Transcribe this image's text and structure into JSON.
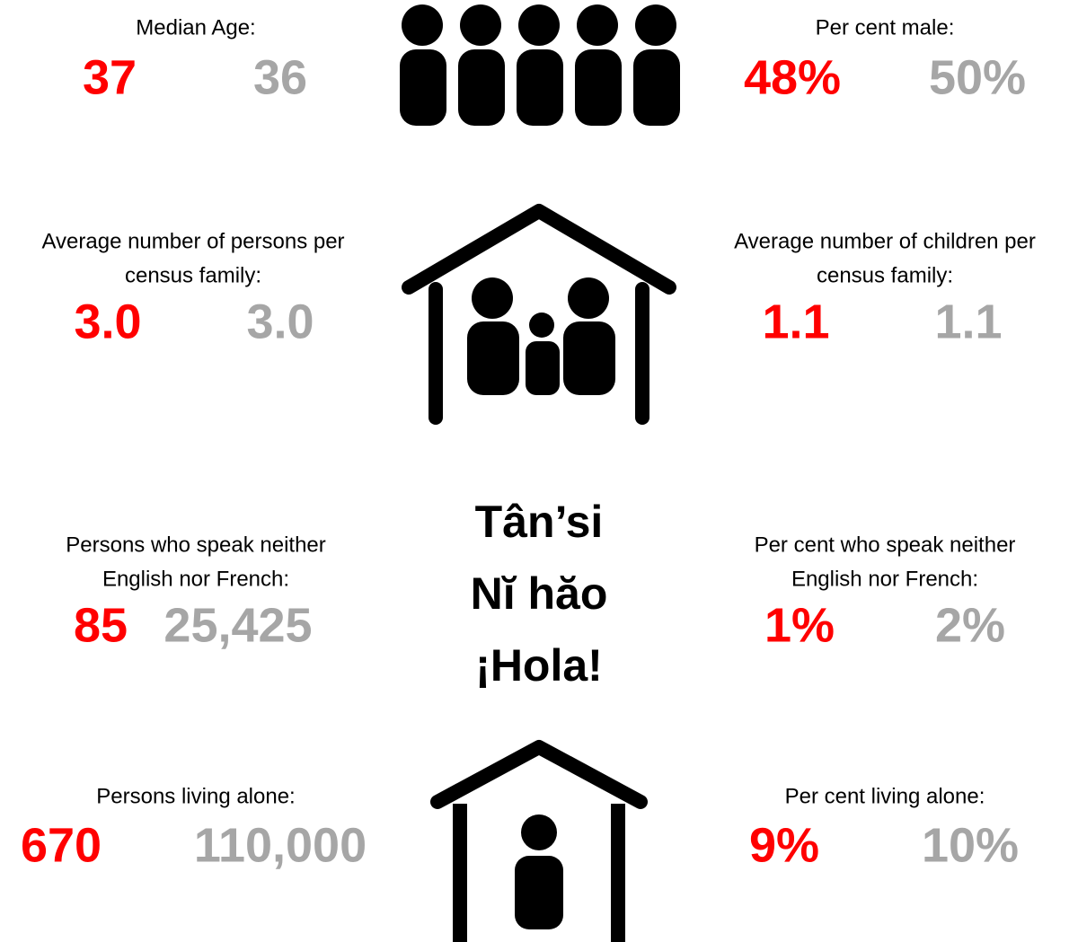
{
  "stats": [
    {
      "label": [
        "Median Age:"
      ],
      "local": "37",
      "comparison": "36"
    },
    {
      "label": [
        "Per cent male:"
      ],
      "local": "48%",
      "comparison": "50%"
    },
    {
      "label": [
        "Average number of persons per",
        "census family:"
      ],
      "local": "3.0",
      "comparison": "3.0"
    },
    {
      "label": [
        "Average number of children per",
        "census family:"
      ],
      "local": "1.1",
      "comparison": "1.1"
    },
    {
      "label": [
        "Persons who speak neither",
        "English nor French:"
      ],
      "local": "85",
      "comparison": "25,425"
    },
    {
      "label": [
        "Per cent who speak neither",
        "English nor French:"
      ],
      "local": "1%",
      "comparison": "2%"
    },
    {
      "label": [
        "Persons living alone:"
      ],
      "local": "670",
      "comparison": "110,000"
    },
    {
      "label": [
        "Per cent living alone:"
      ],
      "local": "9%",
      "comparison": "10%"
    }
  ],
  "greetings": [
    "Tân’si",
    "Nĭ hăo",
    "¡Hola!"
  ]
}
